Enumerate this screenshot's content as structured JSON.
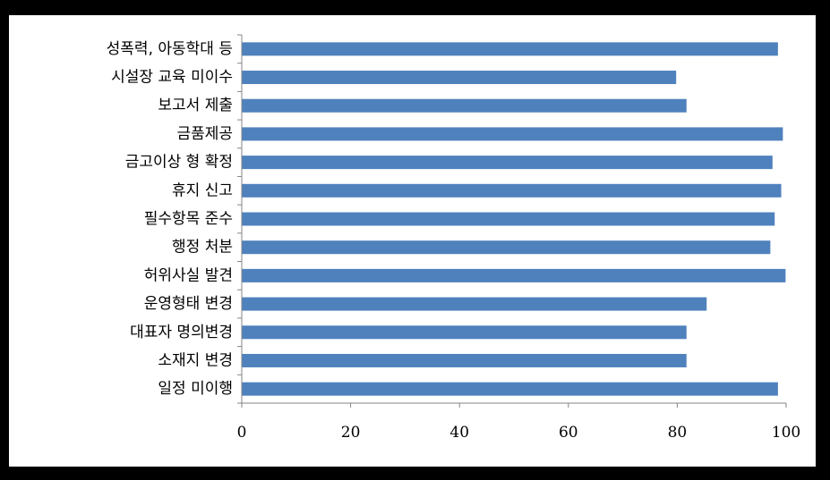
{
  "chart_data": {
    "type": "bar",
    "orientation": "horizontal",
    "categories": [
      "성폭력, 아동학대 등",
      "시설장 교육 미이수",
      "보고서 제출",
      "금품제공",
      "금고이상 형 확정",
      "휴지 신고",
      "필수항목 준수",
      "행정 처분",
      "허위사실 발견",
      "운영형태 변경",
      "대표자 명의변경",
      "소재지 변경",
      "일정 미이행"
    ],
    "values": [
      98.5,
      79.8,
      81.7,
      99.4,
      97.5,
      99.1,
      97.9,
      97.1,
      99.9,
      85.4,
      81.7,
      81.7,
      98.5
    ],
    "xlim": [
      0,
      100
    ],
    "xticks": [
      "0",
      "20",
      "40",
      "60",
      "80",
      "100"
    ],
    "title": "",
    "xlabel": "",
    "ylabel": "",
    "grid": false,
    "legend": "none",
    "bar_color": "#4f81bd"
  }
}
